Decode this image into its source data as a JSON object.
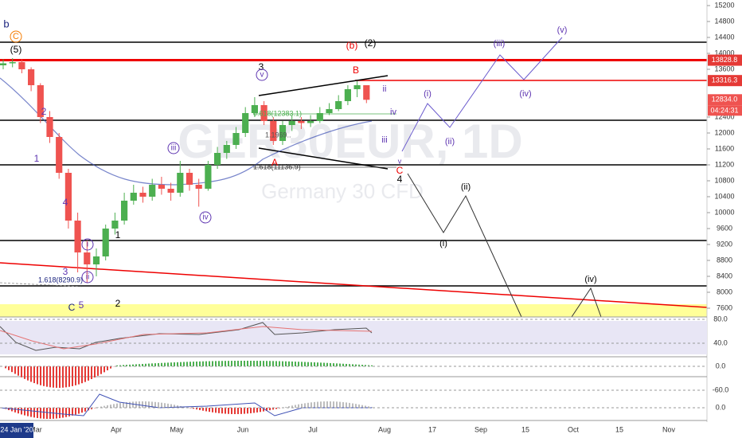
{
  "chart_data": {
    "type": "candlestick",
    "watermark_title": "GER30EUR, 1D",
    "watermark_subtitle": "Germany 30 CFD",
    "open": [
      13700,
      13750,
      13780,
      13600,
      13200,
      12400,
      11900,
      11000,
      9800,
      9000,
      8700,
      8900,
      9600,
      9800,
      10300,
      10500,
      10400,
      10700,
      10600,
      10500,
      11000,
      10700,
      10600,
      11200,
      11500,
      11700,
      12000,
      12500,
      12700,
      12300,
      11800,
      12200,
      12300,
      12250,
      12300,
      12500,
      12600,
      12800,
      13100,
      13200
    ],
    "high": [
      13850,
      13880,
      13850,
      13650,
      13250,
      12550,
      12000,
      11100,
      10000,
      9300,
      9100,
      9700,
      10000,
      10500,
      10700,
      10650,
      10850,
      10900,
      10750,
      11300,
      11100,
      10850,
      11300,
      11650,
      11800,
      12150,
      12650,
      12900,
      12800,
      12400,
      12300,
      12450,
      12400,
      12450,
      12650,
      12750,
      12950,
      13200,
      13300,
      13150
    ],
    "low": [
      13600,
      13650,
      13500,
      13050,
      12250,
      11750,
      10850,
      9600,
      8500,
      8250,
      8400,
      8800,
      9450,
      9700,
      10200,
      10250,
      10300,
      10450,
      10300,
      10400,
      10550,
      10150,
      10550,
      11100,
      11350,
      11600,
      11900,
      12400,
      12200,
      11700,
      11700,
      12050,
      12100,
      12150,
      12250,
      12450,
      12550,
      12700,
      12900,
      12750
    ],
    "close": [
      13750,
      13780,
      13600,
      13200,
      12400,
      11900,
      11000,
      9800,
      9000,
      8700,
      8900,
      9600,
      9800,
      10300,
      10500,
      10400,
      10700,
      10600,
      10500,
      11000,
      10700,
      10600,
      11200,
      11500,
      11700,
      12000,
      12500,
      12700,
      12300,
      11800,
      12200,
      12300,
      12250,
      12300,
      12500,
      12600,
      12800,
      13100,
      13200,
      12834
    ],
    "up_color": "#4caf50",
    "down_color": "#ef5350",
    "ylim": [
      7380,
      15340
    ],
    "yticks": [
      15200,
      14800,
      14400,
      14000,
      13600,
      12400,
      12000,
      11600,
      11200,
      10800,
      10400,
      10000,
      9600,
      9200,
      8800,
      8400,
      8000,
      7600
    ],
    "price_tags": [
      13828.8,
      13316.3,
      {
        "value": 12834,
        "label": "12834.0"
      }
    ],
    "countdown": "04:24:31",
    "annotations": [
      "b",
      "C",
      "(5)",
      "2",
      "1",
      "4",
      "3",
      "C",
      "5",
      "i",
      "ii",
      "1.618(8290.9)",
      "2",
      "1",
      "iii",
      "iv",
      "3",
      "v",
      "0.618(12383.1)",
      "1.1969..",
      "1.618(11136.9)",
      "A",
      "B",
      "(b)",
      "(2)",
      "ii",
      "iv",
      "iii",
      "v",
      "C",
      "4",
      "(i)",
      "(ii)",
      "(iii)",
      "(iv)",
      "(v)",
      "(ii)",
      "(i)",
      "(iv)"
    ],
    "x_labels": [
      "Mar",
      "Apr",
      "May",
      "Jun",
      "Jul",
      "Aug",
      "17",
      "Sep",
      "15",
      "Oct",
      "15",
      "Nov"
    ],
    "start_date": "24 Jan '20",
    "pane_ticks": [
      {
        "value": 80,
        "label": "80.0"
      },
      {
        "value": 40,
        "label": "40.0"
      },
      {
        "value": 0,
        "label": "0.0"
      },
      {
        "value": -60,
        "label": "-60.0"
      },
      {
        "value": 0,
        "label": "0.0"
      }
    ]
  }
}
